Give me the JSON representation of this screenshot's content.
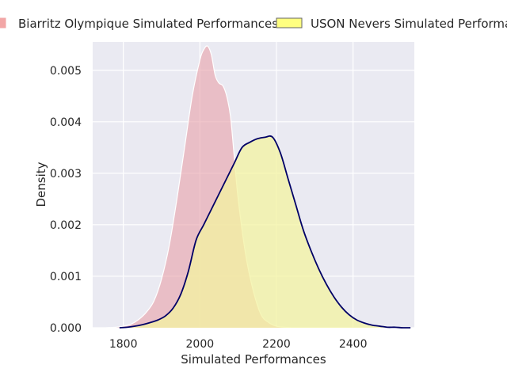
{
  "chart_data": {
    "type": "area",
    "title": "",
    "xlabel": "Simulated Performances",
    "ylabel": "Density",
    "xlim": [
      1720,
      2560
    ],
    "ylim": [
      0,
      0.00555
    ],
    "x_ticks": [
      1800,
      2000,
      2200,
      2400
    ],
    "x_tick_labels": [
      "1800",
      "2000",
      "2200",
      "2400"
    ],
    "y_ticks": [
      0,
      0.001,
      0.002,
      0.003,
      0.004,
      0.005
    ],
    "y_tick_labels": [
      "0.000",
      "0.001",
      "0.002",
      "0.003",
      "0.004",
      "0.005"
    ],
    "grid": true,
    "legend_position": "top",
    "series": [
      {
        "name": "Biarritz Olympique Simulated Performances",
        "fill_color": "#e8a0a8",
        "edge_color": "#ffffff",
        "fill_opacity": 0.6,
        "x": [
          1755,
          1780,
          1800,
          1820,
          1840,
          1860,
          1880,
          1900,
          1920,
          1940,
          1960,
          1980,
          2000,
          2010,
          2020,
          2030,
          2040,
          2050,
          2060,
          2070,
          2080,
          2090,
          2100,
          2120,
          2140,
          2160,
          2180,
          2200,
          2220,
          2240
        ],
        "y": [
          0.0,
          1e-05,
          3e-05,
          7e-05,
          0.00016,
          0.0003,
          0.00052,
          0.00095,
          0.0016,
          0.0025,
          0.0035,
          0.0045,
          0.0052,
          0.0054,
          0.00547,
          0.0053,
          0.0049,
          0.00475,
          0.0047,
          0.0045,
          0.0041,
          0.0033,
          0.0025,
          0.0014,
          0.0007,
          0.00025,
          0.0001,
          3e-05,
          1e-05,
          0.0
        ]
      },
      {
        "name": "USON Nevers Simulated Performances",
        "fill_color": "#f3f3a0",
        "edge_color": "#000066",
        "fill_opacity": 0.75,
        "x": [
          1790,
          1810,
          1830,
          1850,
          1870,
          1890,
          1910,
          1930,
          1950,
          1970,
          1990,
          2010,
          2030,
          2050,
          2070,
          2090,
          2110,
          2130,
          2150,
          2170,
          2190,
          2210,
          2230,
          2250,
          2270,
          2290,
          2310,
          2330,
          2350,
          2370,
          2390,
          2410,
          2430,
          2450,
          2470,
          2490,
          2510,
          2530,
          2550
        ],
        "y": [
          0.0,
          1e-05,
          3e-05,
          6e-05,
          0.0001,
          0.00015,
          0.00023,
          0.00038,
          0.00065,
          0.0011,
          0.0017,
          0.002,
          0.0023,
          0.0026,
          0.0029,
          0.0032,
          0.0035,
          0.0036,
          0.00367,
          0.0037,
          0.0037,
          0.0034,
          0.0029,
          0.0024,
          0.0019,
          0.0015,
          0.00115,
          0.00085,
          0.0006,
          0.0004,
          0.00025,
          0.00015,
          9e-05,
          5e-05,
          3e-05,
          1e-05,
          1e-05,
          0.0,
          0.0
        ]
      }
    ]
  }
}
